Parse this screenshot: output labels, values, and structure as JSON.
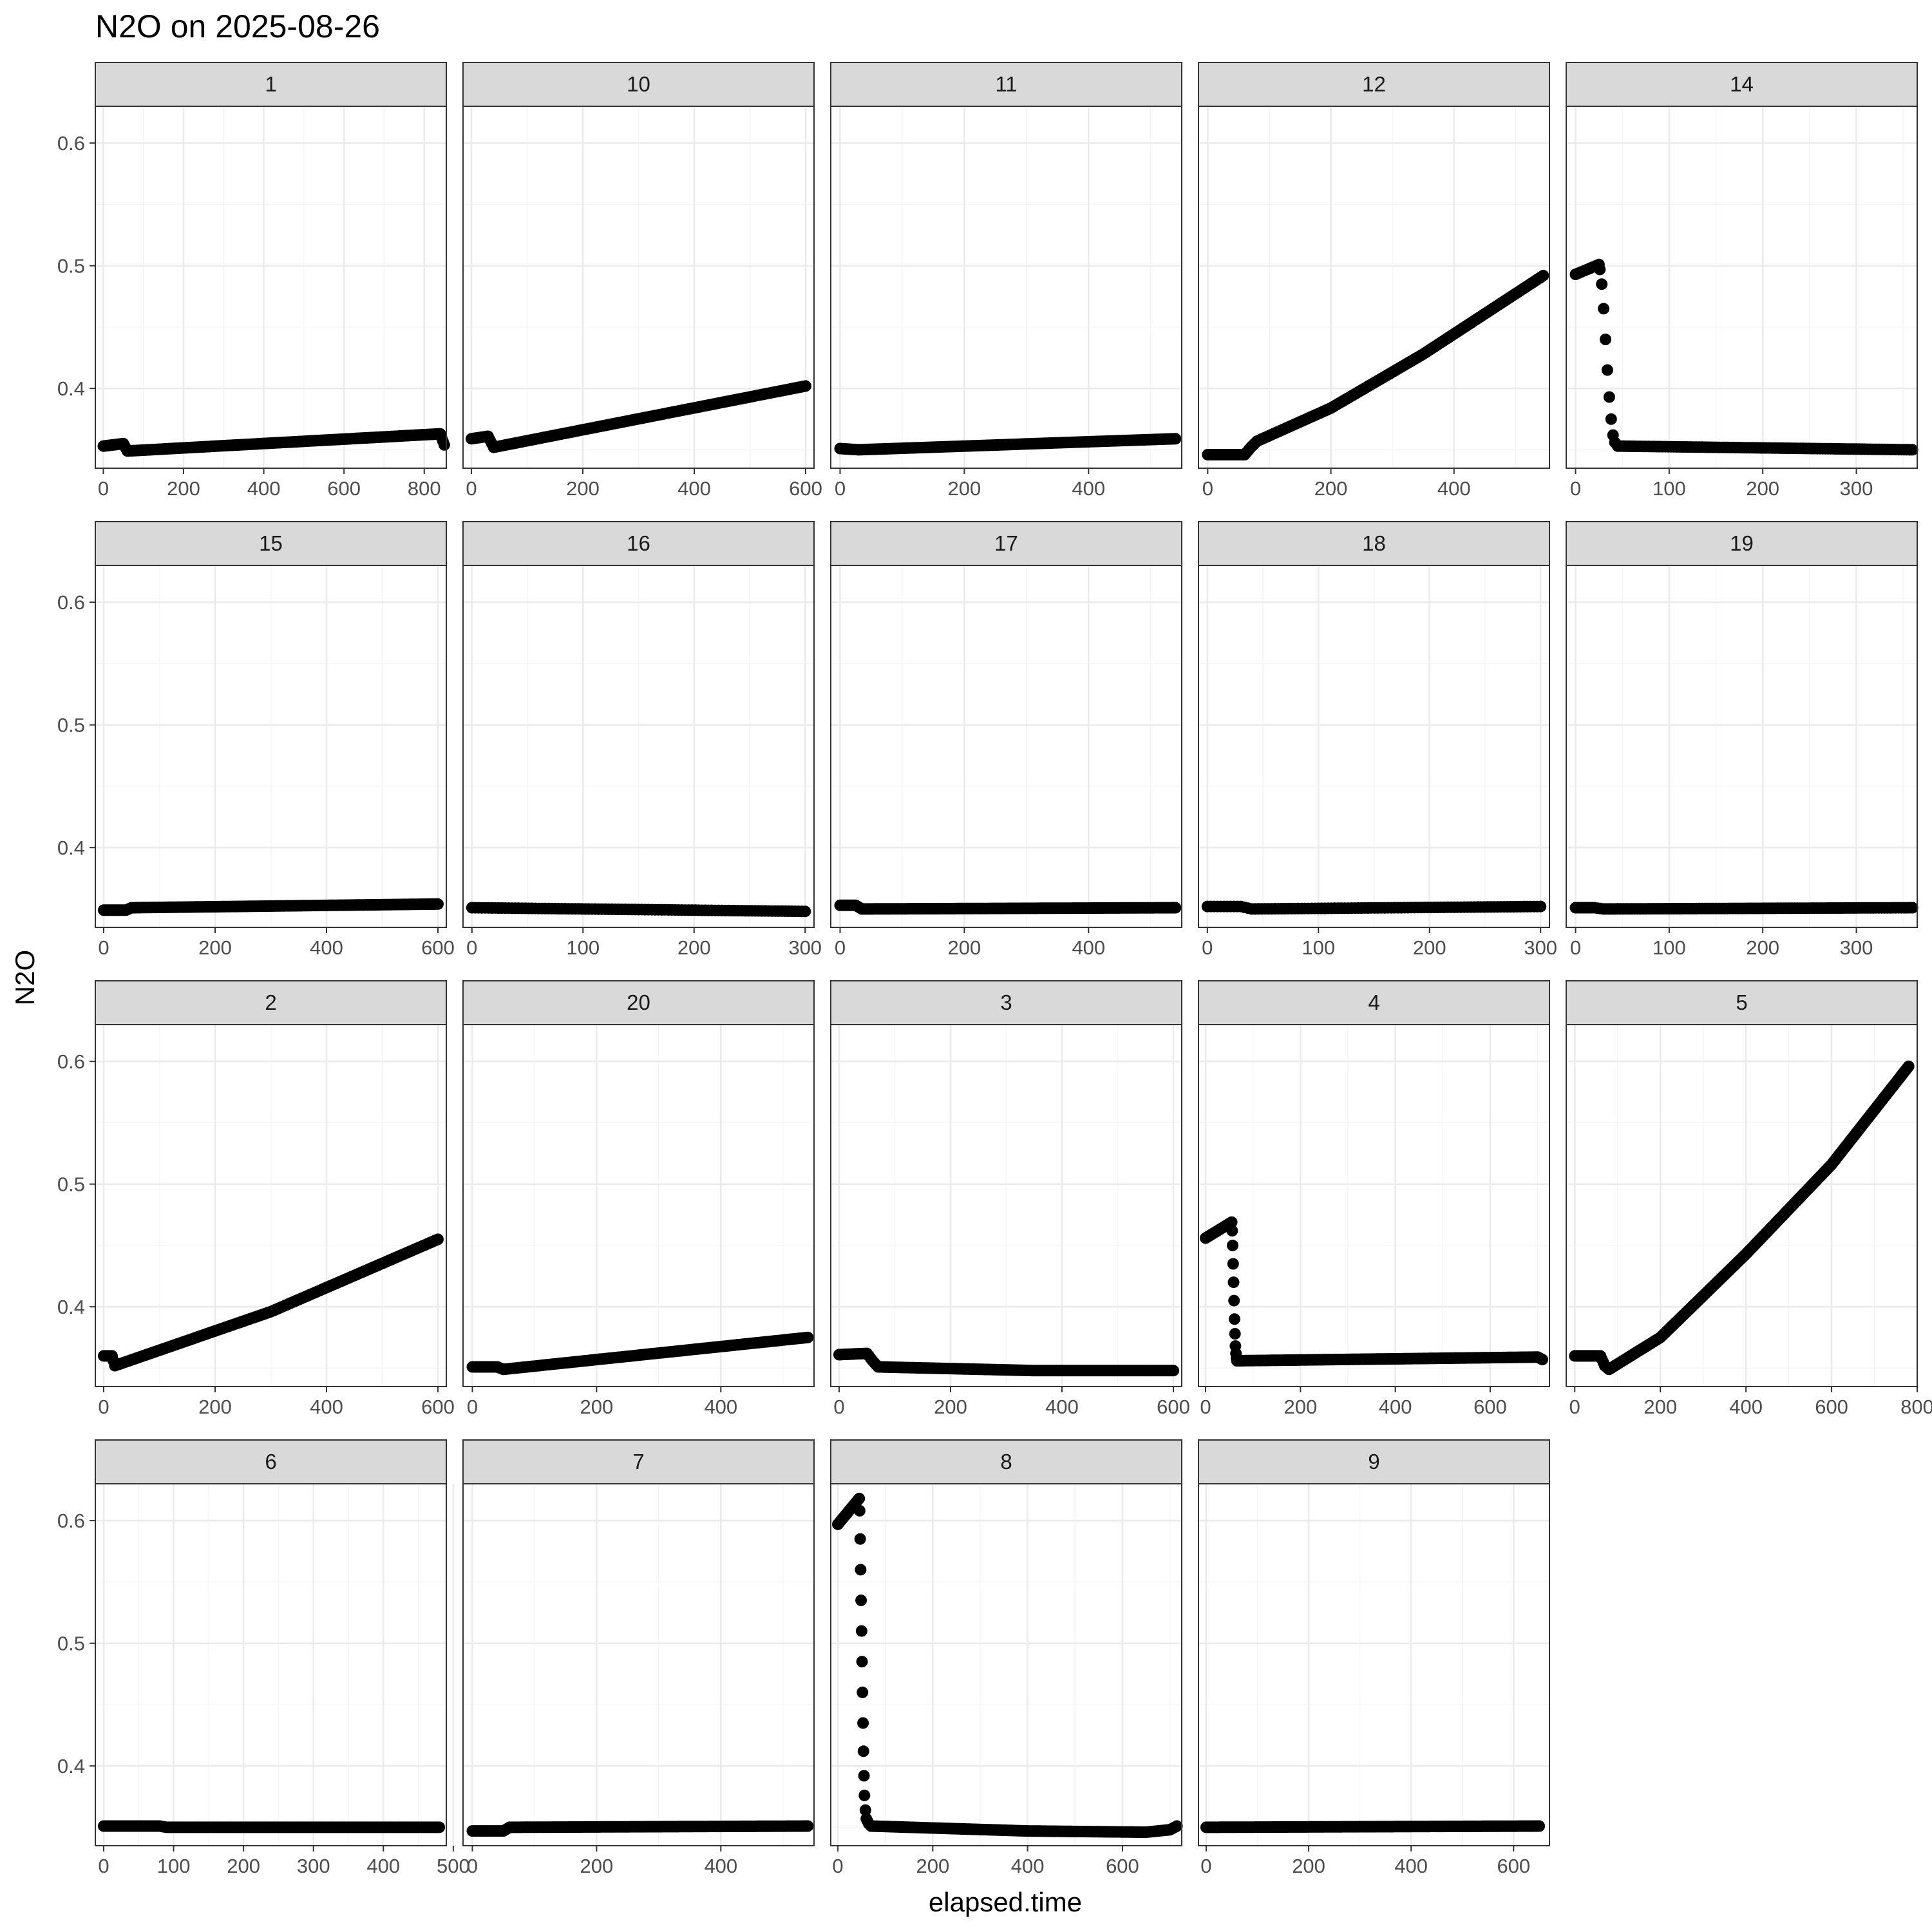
{
  "chart_data": {
    "type": "scatter",
    "title": "N2O on 2025-08-26",
    "xlabel": "elapsed.time",
    "ylabel": "N2O",
    "ylim": [
      0.335,
      0.63
    ],
    "yticks": [
      0.4,
      0.5,
      0.6
    ],
    "grid": true,
    "panel_order": [
      "1",
      "10",
      "11",
      "12",
      "14",
      "15",
      "16",
      "17",
      "18",
      "19",
      "2",
      "20",
      "3",
      "4",
      "5",
      "6",
      "7",
      "8",
      "9"
    ],
    "panels": [
      {
        "name": "1",
        "xlim": [
          -20,
          855
        ],
        "xticks": [
          0,
          200,
          400,
          600,
          800
        ],
        "points": [
          [
            0,
            0.353
          ],
          [
            50,
            0.355
          ],
          [
            60,
            0.349
          ],
          [
            840,
            0.363
          ],
          [
            850,
            0.354
          ]
        ]
      },
      {
        "name": "10",
        "xlim": [
          -15,
          615
        ],
        "xticks": [
          0,
          200,
          400,
          600
        ],
        "points": [
          [
            0,
            0.359
          ],
          [
            30,
            0.361
          ],
          [
            40,
            0.352
          ],
          [
            600,
            0.402
          ]
        ]
      },
      {
        "name": "11",
        "xlim": [
          -15,
          550
        ],
        "xticks": [
          0,
          200,
          400
        ],
        "points": [
          [
            0,
            0.351
          ],
          [
            30,
            0.35
          ],
          [
            540,
            0.359
          ]
        ]
      },
      {
        "name": "12",
        "xlim": [
          -15,
          555
        ],
        "xticks": [
          0,
          200,
          400
        ],
        "points": [
          [
            0,
            0.346
          ],
          [
            60,
            0.346
          ],
          [
            70,
            0.352
          ],
          [
            80,
            0.357
          ],
          [
            200,
            0.384
          ],
          [
            350,
            0.428
          ],
          [
            545,
            0.492
          ]
        ]
      },
      {
        "name": "14",
        "xlim": [
          -10,
          365
        ],
        "xticks": [
          0,
          100,
          200,
          300
        ],
        "points": [
          [
            0,
            0.493
          ],
          [
            25,
            0.501
          ],
          [
            26,
            0.497
          ],
          [
            28,
            0.485
          ],
          [
            30,
            0.465
          ],
          [
            32,
            0.44
          ],
          [
            34,
            0.415
          ],
          [
            36,
            0.393
          ],
          [
            38,
            0.375
          ],
          [
            40,
            0.362
          ],
          [
            42,
            0.356
          ],
          [
            45,
            0.353
          ],
          [
            360,
            0.35
          ]
        ]
      },
      {
        "name": "15",
        "xlim": [
          -15,
          615
        ],
        "xticks": [
          0,
          200,
          400,
          600
        ],
        "points": [
          [
            0,
            0.349
          ],
          [
            40,
            0.349
          ],
          [
            50,
            0.351
          ],
          [
            600,
            0.354
          ]
        ]
      },
      {
        "name": "16",
        "xlim": [
          -8,
          308
        ],
        "xticks": [
          0,
          100,
          200,
          300
        ],
        "points": [
          [
            0,
            0.351
          ],
          [
            300,
            0.348
          ]
        ]
      },
      {
        "name": "17",
        "xlim": [
          -15,
          550
        ],
        "xticks": [
          0,
          200,
          400
        ],
        "points": [
          [
            0,
            0.353
          ],
          [
            25,
            0.353
          ],
          [
            35,
            0.35
          ],
          [
            540,
            0.351
          ]
        ]
      },
      {
        "name": "18",
        "xlim": [
          -8,
          308
        ],
        "xticks": [
          0,
          100,
          200,
          300
        ],
        "points": [
          [
            0,
            0.352
          ],
          [
            30,
            0.352
          ],
          [
            40,
            0.35
          ],
          [
            300,
            0.352
          ]
        ]
      },
      {
        "name": "19",
        "xlim": [
          -10,
          365
        ],
        "xticks": [
          0,
          100,
          200,
          300
        ],
        "points": [
          [
            0,
            0.351
          ],
          [
            20,
            0.351
          ],
          [
            30,
            0.35
          ],
          [
            360,
            0.351
          ]
        ]
      },
      {
        "name": "2",
        "xlim": [
          -15,
          615
        ],
        "xticks": [
          0,
          200,
          400,
          600
        ],
        "points": [
          [
            0,
            0.36
          ],
          [
            15,
            0.36
          ],
          [
            20,
            0.352
          ],
          [
            300,
            0.396
          ],
          [
            600,
            0.455
          ]
        ]
      },
      {
        "name": "20",
        "xlim": [
          -15,
          550
        ],
        "xticks": [
          0,
          200,
          400
        ],
        "points": [
          [
            0,
            0.351
          ],
          [
            40,
            0.351
          ],
          [
            50,
            0.349
          ],
          [
            540,
            0.375
          ]
        ]
      },
      {
        "name": "3",
        "xlim": [
          -15,
          615
        ],
        "xticks": [
          0,
          200,
          400,
          600
        ],
        "points": [
          [
            0,
            0.361
          ],
          [
            50,
            0.362
          ],
          [
            60,
            0.356
          ],
          [
            70,
            0.351
          ],
          [
            350,
            0.348
          ],
          [
            600,
            0.348
          ]
        ]
      },
      {
        "name": "4",
        "xlim": [
          -15,
          725
        ],
        "xticks": [
          0,
          200,
          400,
          600
        ],
        "points": [
          [
            0,
            0.456
          ],
          [
            55,
            0.469
          ],
          [
            56,
            0.462
          ],
          [
            57,
            0.45
          ],
          [
            58,
            0.435
          ],
          [
            59,
            0.42
          ],
          [
            60,
            0.405
          ],
          [
            61,
            0.39
          ],
          [
            62,
            0.378
          ],
          [
            63,
            0.368
          ],
          [
            64,
            0.362
          ],
          [
            65,
            0.358
          ],
          [
            66,
            0.356
          ],
          [
            700,
            0.359
          ],
          [
            710,
            0.357
          ]
        ]
      },
      {
        "name": "5",
        "xlim": [
          -20,
          800
        ],
        "xticks": [
          0,
          200,
          400,
          600,
          800
        ],
        "points": [
          [
            0,
            0.36
          ],
          [
            60,
            0.36
          ],
          [
            70,
            0.352
          ],
          [
            80,
            0.349
          ],
          [
            200,
            0.375
          ],
          [
            400,
            0.443
          ],
          [
            600,
            0.516
          ],
          [
            780,
            0.596
          ]
        ]
      },
      {
        "name": "6",
        "xlim": [
          -12,
          490
        ],
        "xticks": [
          0,
          100,
          200,
          300,
          400,
          500
        ],
        "points": [
          [
            0,
            0.351
          ],
          [
            80,
            0.351
          ],
          [
            90,
            0.35
          ],
          [
            480,
            0.35
          ]
        ]
      },
      {
        "name": "7",
        "xlim": [
          -15,
          550
        ],
        "xticks": [
          0,
          200,
          400
        ],
        "points": [
          [
            0,
            0.347
          ],
          [
            50,
            0.347
          ],
          [
            60,
            0.35
          ],
          [
            540,
            0.351
          ]
        ]
      },
      {
        "name": "8",
        "xlim": [
          -15,
          725
        ],
        "xticks": [
          0,
          200,
          400,
          600
        ],
        "points": [
          [
            0,
            0.597
          ],
          [
            45,
            0.618
          ],
          [
            46,
            0.608
          ],
          [
            47,
            0.585
          ],
          [
            48,
            0.56
          ],
          [
            49,
            0.535
          ],
          [
            50,
            0.51
          ],
          [
            51,
            0.485
          ],
          [
            52,
            0.46
          ],
          [
            53,
            0.435
          ],
          [
            54,
            0.412
          ],
          [
            55,
            0.392
          ],
          [
            56,
            0.376
          ],
          [
            58,
            0.364
          ],
          [
            60,
            0.357
          ],
          [
            65,
            0.353
          ],
          [
            70,
            0.351
          ],
          [
            400,
            0.347
          ],
          [
            650,
            0.346
          ],
          [
            700,
            0.348
          ],
          [
            715,
            0.351
          ]
        ]
      },
      {
        "name": "9",
        "xlim": [
          -15,
          670
        ],
        "xticks": [
          0,
          200,
          400,
          600
        ],
        "points": [
          [
            0,
            0.35
          ],
          [
            650,
            0.351
          ]
        ]
      }
    ]
  }
}
